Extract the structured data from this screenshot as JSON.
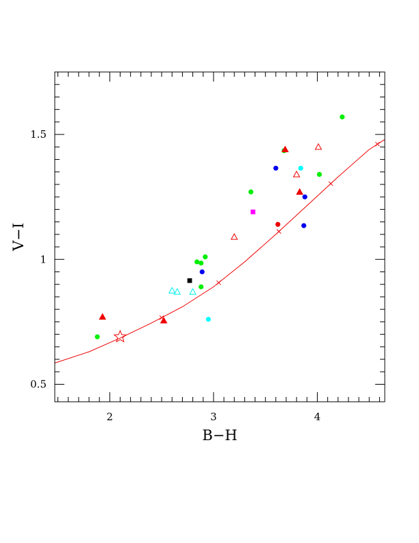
{
  "chart_data": {
    "type": "scatter",
    "xlabel": "B−H",
    "ylabel": "V−I",
    "xlim": [
      1.47,
      4.65
    ],
    "ylim": [
      0.43,
      1.75
    ],
    "x_ticks": [
      2,
      3,
      4
    ],
    "x_tick_labels": [
      "2",
      "3",
      "4"
    ],
    "y_ticks": [
      0.5,
      1,
      1.5
    ],
    "y_tick_labels": [
      "0.5",
      "1",
      "1.5"
    ],
    "grid": false,
    "series": [
      {
        "color": "#00ee00",
        "marker": "filled-circle",
        "points": [
          [
            1.88,
            0.69
          ],
          [
            2.84,
            0.99
          ],
          [
            2.88,
            0.985
          ],
          [
            2.88,
            0.89
          ],
          [
            2.92,
            1.01
          ],
          [
            3.36,
            1.27
          ],
          [
            3.68,
            1.435
          ],
          [
            4.02,
            1.34
          ],
          [
            4.24,
            1.57
          ]
        ]
      },
      {
        "color": "#0000ee",
        "marker": "filled-circle",
        "points": [
          [
            2.89,
            0.95
          ],
          [
            3.6,
            1.365
          ],
          [
            3.88,
            1.25
          ],
          [
            3.87,
            1.135
          ]
        ]
      },
      {
        "color": "#00ffff",
        "marker": "filled-circle",
        "points": [
          [
            2.95,
            0.76
          ],
          [
            3.84,
            1.365
          ]
        ]
      },
      {
        "color": "#ee0000",
        "marker": "filled-circle",
        "points": [
          [
            3.62,
            1.14
          ]
        ]
      },
      {
        "color": "#000000",
        "marker": "filled-square",
        "points": [
          [
            2.77,
            0.915
          ]
        ]
      },
      {
        "color": "#ff00ff",
        "marker": "filled-square",
        "points": [
          [
            3.38,
            1.19
          ]
        ]
      },
      {
        "color": "#ee0000",
        "marker": "filled-triangle",
        "points": [
          [
            1.93,
            0.77
          ],
          [
            2.52,
            0.755
          ],
          [
            3.69,
            1.44
          ],
          [
            3.83,
            1.27
          ]
        ]
      },
      {
        "color": "#ee0000",
        "marker": "open-triangle",
        "points": [
          [
            3.2,
            1.09
          ],
          [
            3.8,
            1.34
          ],
          [
            4.01,
            1.45
          ]
        ]
      },
      {
        "color": "#00eeee",
        "marker": "open-triangle",
        "points": [
          [
            2.6,
            0.875
          ],
          [
            2.65,
            0.87
          ],
          [
            2.8,
            0.87
          ]
        ]
      },
      {
        "color": "#ee0000",
        "marker": "open-star",
        "points": [
          [
            2.1,
            0.69
          ]
        ]
      }
    ],
    "model_curve": {
      "color": "#ee0000",
      "x": [
        1.47,
        1.8,
        2.1,
        2.4,
        2.7,
        3.0,
        3.3,
        3.6,
        3.9,
        4.2,
        4.5,
        4.65
      ],
      "y": [
        0.585,
        0.63,
        0.685,
        0.745,
        0.81,
        0.89,
        0.99,
        1.1,
        1.215,
        1.33,
        1.44,
        1.48
      ],
      "markers_x": [
        2.5,
        3.05,
        3.63,
        4.13,
        4.58
      ]
    }
  }
}
